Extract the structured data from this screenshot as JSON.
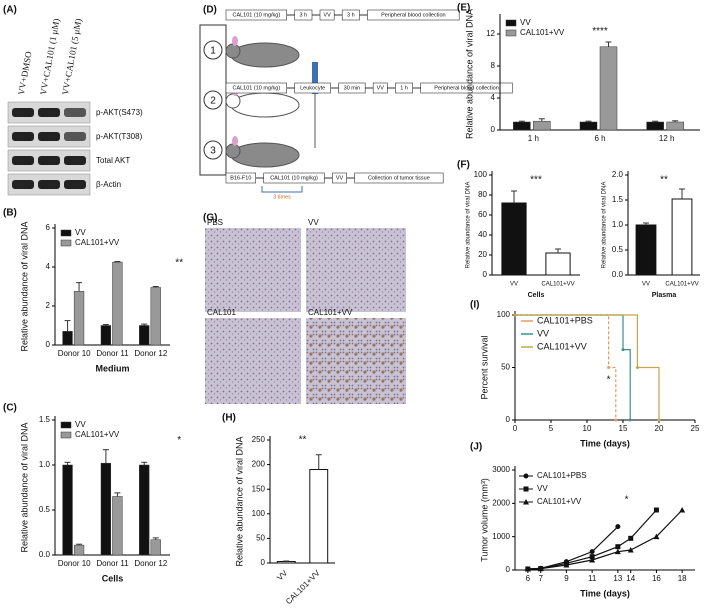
{
  "blot": {
    "label": "(A)",
    "lanes": [
      "VV+DMSO",
      "VV+CAL101 (1 μM)",
      "VV+CAL101 (5 μM)"
    ],
    "bands": [
      "p-AKT(S473)",
      "p-AKT(T308)",
      "Total AKT",
      "β-Actin"
    ]
  },
  "schema": {
    "label": "(D)",
    "rows": [
      [
        "CAL101 (10 mg/kg)",
        "3 h",
        "VV",
        "3 h",
        "Peripheral blood collection"
      ],
      [
        "CAL101 (10 mg/kg)",
        "Leukocyte",
        "30 min",
        "VV",
        "1 h",
        "Peripheral blood collection"
      ],
      [
        "B16-F10",
        "CAL101 (10 mg/kg)",
        "VV",
        "Collection of tumor tissue"
      ]
    ],
    "repeat": "3 times",
    "groups": [
      "1",
      "2",
      "3"
    ]
  },
  "histology": {
    "label": "(G)",
    "images": [
      "PBS",
      "VV",
      "CAL101",
      "CAL101+VV"
    ]
  },
  "chart_data": [
    {
      "type": "bar",
      "label": "(B)",
      "categories": [
        "Donor 10",
        "Donor 11",
        "Donor 12"
      ],
      "series": [
        {
          "name": "VV",
          "color": "#111111",
          "values": [
            0.7,
            1.0,
            1.0
          ],
          "errors": [
            0.55,
            0.05,
            0.07
          ]
        },
        {
          "name": "CAL101+VV",
          "color": "#999999",
          "values": [
            2.75,
            4.25,
            2.95
          ],
          "errors": [
            0.45,
            0.03,
            0.05
          ]
        }
      ],
      "ylim": [
        0,
        6
      ],
      "yticks": [
        0,
        2,
        4,
        6
      ],
      "ylabel": "Relative abundance of viral DNA",
      "xlabel": "Medium",
      "annotations": [
        "**"
      ]
    },
    {
      "type": "bar",
      "label": "(C)",
      "categories": [
        "Donor 10",
        "Donor 11",
        "Donor 12"
      ],
      "series": [
        {
          "name": "VV",
          "color": "#111111",
          "values": [
            1.0,
            1.02,
            1.0
          ],
          "errors": [
            0.03,
            0.15,
            0.03
          ]
        },
        {
          "name": "CAL101+VV",
          "color": "#999999",
          "values": [
            0.11,
            0.65,
            0.17
          ],
          "errors": [
            0.01,
            0.04,
            0.02
          ]
        }
      ],
      "ylim": [
        0,
        1.5
      ],
      "yticks": [
        {
          "value": 0,
          "label": "0.0"
        },
        {
          "value": 0.5,
          "label": "0.5"
        },
        {
          "value": 1,
          "label": "1.0"
        },
        {
          "value": 1.5,
          "label": "1.5"
        }
      ],
      "ylabel": "Relative abundance of viral DNA",
      "xlabel": "Cells",
      "annotations": [
        "*"
      ]
    },
    {
      "type": "bar",
      "label": "(E)",
      "categories": [
        "1 h",
        "6 h",
        "12 h"
      ],
      "series": [
        {
          "name": "VV",
          "color": "#111111",
          "values": [
            1,
            1,
            1
          ],
          "errors": [
            0.1,
            0.1,
            0.1
          ]
        },
        {
          "name": "CAL101+VV",
          "color": "#999999",
          "values": [
            1.1,
            10.4,
            1.0
          ],
          "errors": [
            0.3,
            0.6,
            0.15
          ]
        }
      ],
      "ylim": [
        0,
        14
      ],
      "yticks": [
        0,
        4,
        8,
        12
      ],
      "ylabel": "Relative abundance of viral DNA",
      "annotations": [
        "****"
      ]
    },
    {
      "type": "bar",
      "label": "(F)",
      "categories": [
        "VV",
        "CAL101+VV"
      ],
      "values": [
        72,
        22
      ],
      "errors": [
        12,
        4
      ],
      "colors": [
        "#111111",
        "#ffffff"
      ],
      "ylim": [
        0,
        100
      ],
      "yticks": [
        0,
        20,
        40,
        60,
        80,
        100
      ],
      "ylabel": "Relative abundance of viral DNA",
      "xlabel": "Cells",
      "annotations": [
        "***"
      ]
    },
    {
      "type": "bar",
      "categories": [
        "VV",
        "CAL101+VV"
      ],
      "values": [
        1.0,
        1.52
      ],
      "errors": [
        0.04,
        0.2
      ],
      "colors": [
        "#111111",
        "#ffffff"
      ],
      "ylim": [
        0,
        2
      ],
      "yticks": [
        {
          "value": 0,
          "label": "0.0"
        },
        {
          "value": 0.5,
          "label": "0.5"
        },
        {
          "value": 1,
          "label": "1.0"
        },
        {
          "value": 1.5,
          "label": "1.5"
        },
        {
          "value": 2,
          "label": "2.0"
        }
      ],
      "ylabel": "Relative abundance of viral DNA",
      "xlabel": "Plasma",
      "annotations": [
        "**"
      ]
    },
    {
      "type": "bar",
      "label": "(H)",
      "categories": [
        "VV",
        "CAL101+VV"
      ],
      "values": [
        3,
        190
      ],
      "errors": [
        1,
        30
      ],
      "colors": [
        "#ffffff",
        "#ffffff"
      ],
      "ylim": [
        0,
        250
      ],
      "yticks": [
        0,
        50,
        100,
        150,
        200,
        250
      ],
      "ylabel": "Relative abundance of viral DNA",
      "annotations": [
        "**"
      ]
    },
    {
      "type": "step",
      "label": "(I)",
      "series": [
        {
          "name": "CAL101+PBS",
          "color": "#e89a5a",
          "x": [
            0,
            13,
            14
          ],
          "values": [
            100,
            50,
            0
          ]
        },
        {
          "name": "VV",
          "color": "#3d8f8f",
          "x": [
            0,
            15,
            16
          ],
          "values": [
            100,
            67,
            0
          ]
        },
        {
          "name": "CAL101+VV",
          "color": "#c9a44a",
          "x": [
            0,
            17,
            20
          ],
          "values": [
            100,
            50,
            0
          ]
        }
      ],
      "xlim": [
        0,
        25
      ],
      "xticks": [
        0,
        5,
        10,
        15,
        20,
        25
      ],
      "ylim": [
        0,
        100
      ],
      "yticks": [
        0,
        50,
        100
      ],
      "xlabel": "Time (days)",
      "ylabel": "Percent survival",
      "annotations": [
        "*"
      ]
    },
    {
      "type": "line",
      "label": "(J)",
      "series": [
        {
          "name": "CAL101+PBS",
          "color": "#111111",
          "marker": "circle",
          "x": [
            6,
            7,
            9,
            11,
            13
          ],
          "values": [
            30,
            50,
            250,
            550,
            1300
          ]
        },
        {
          "name": "VV",
          "color": "#111111",
          "marker": "square",
          "x": [
            6,
            7,
            9,
            11,
            13,
            14,
            16
          ],
          "values": [
            30,
            40,
            200,
            400,
            700,
            950,
            1800
          ]
        },
        {
          "name": "CAL101+VV",
          "color": "#111111",
          "marker": "triangle",
          "x": [
            6,
            7,
            9,
            11,
            13,
            14,
            16,
            18
          ],
          "values": [
            30,
            40,
            150,
            300,
            550,
            600,
            1000,
            1800
          ]
        }
      ],
      "xlim": [
        5,
        19
      ],
      "xticks": [
        6,
        7,
        9,
        11,
        13,
        14,
        16,
        18
      ],
      "ylim": [
        0,
        3000
      ],
      "yticks": [
        0,
        1000,
        2000,
        3000
      ],
      "xlabel": "Time (days)",
      "ylabel": "Tumor volume (mm³)",
      "annotations": [
        "*"
      ]
    }
  ]
}
